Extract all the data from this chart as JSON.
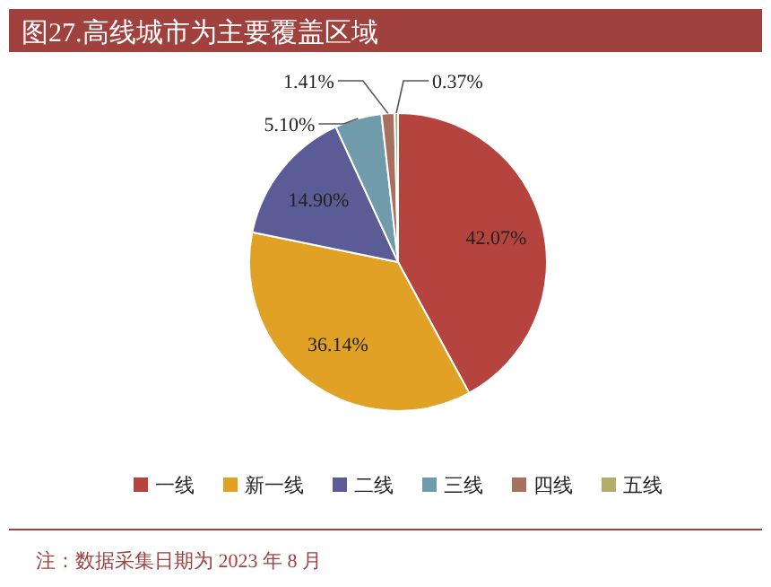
{
  "chart_data": {
    "type": "pie",
    "title": "图27.高线城市为主要覆盖区域",
    "categories": [
      "一线",
      "新一线",
      "二线",
      "三线",
      "四线",
      "五线"
    ],
    "values": [
      42.07,
      36.14,
      14.9,
      5.1,
      1.41,
      0.37
    ],
    "value_labels": [
      "42.07%",
      "36.14%",
      "14.90%",
      "5.10%",
      "1.41%",
      "0.37%"
    ],
    "colors": [
      "#b5443f",
      "#e0a125",
      "#5b5b96",
      "#6f9bab",
      "#a8705f",
      "#b3ad6b"
    ],
    "legend": "bottom",
    "annotations": [
      "注：数据采集日期为 2023 年 8 月"
    ]
  }
}
